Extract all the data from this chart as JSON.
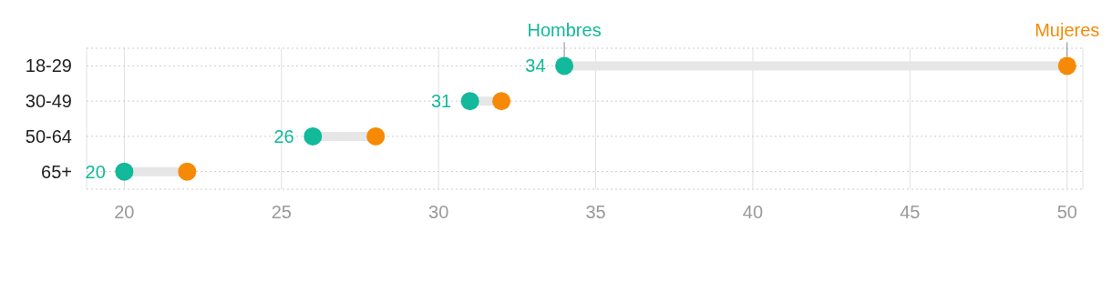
{
  "chart_data": {
    "type": "scatter",
    "orientation": "horizontal",
    "categories": [
      "18-29",
      "30-49",
      "50-64",
      "65+"
    ],
    "series": [
      {
        "name": "Hombres",
        "color": "#12b99a",
        "values": [
          34,
          31,
          26,
          20
        ],
        "value_labels": [
          "34",
          "31",
          "26",
          "20"
        ]
      },
      {
        "name": "Mujeres",
        "color": "#f68a06",
        "values": [
          50,
          32,
          28,
          22
        ]
      }
    ],
    "xlim": [
      18.8,
      50.5
    ],
    "xticks": [
      20,
      25,
      30,
      35,
      40,
      45,
      50
    ],
    "grid": true,
    "legend": false,
    "marker": "circle"
  }
}
